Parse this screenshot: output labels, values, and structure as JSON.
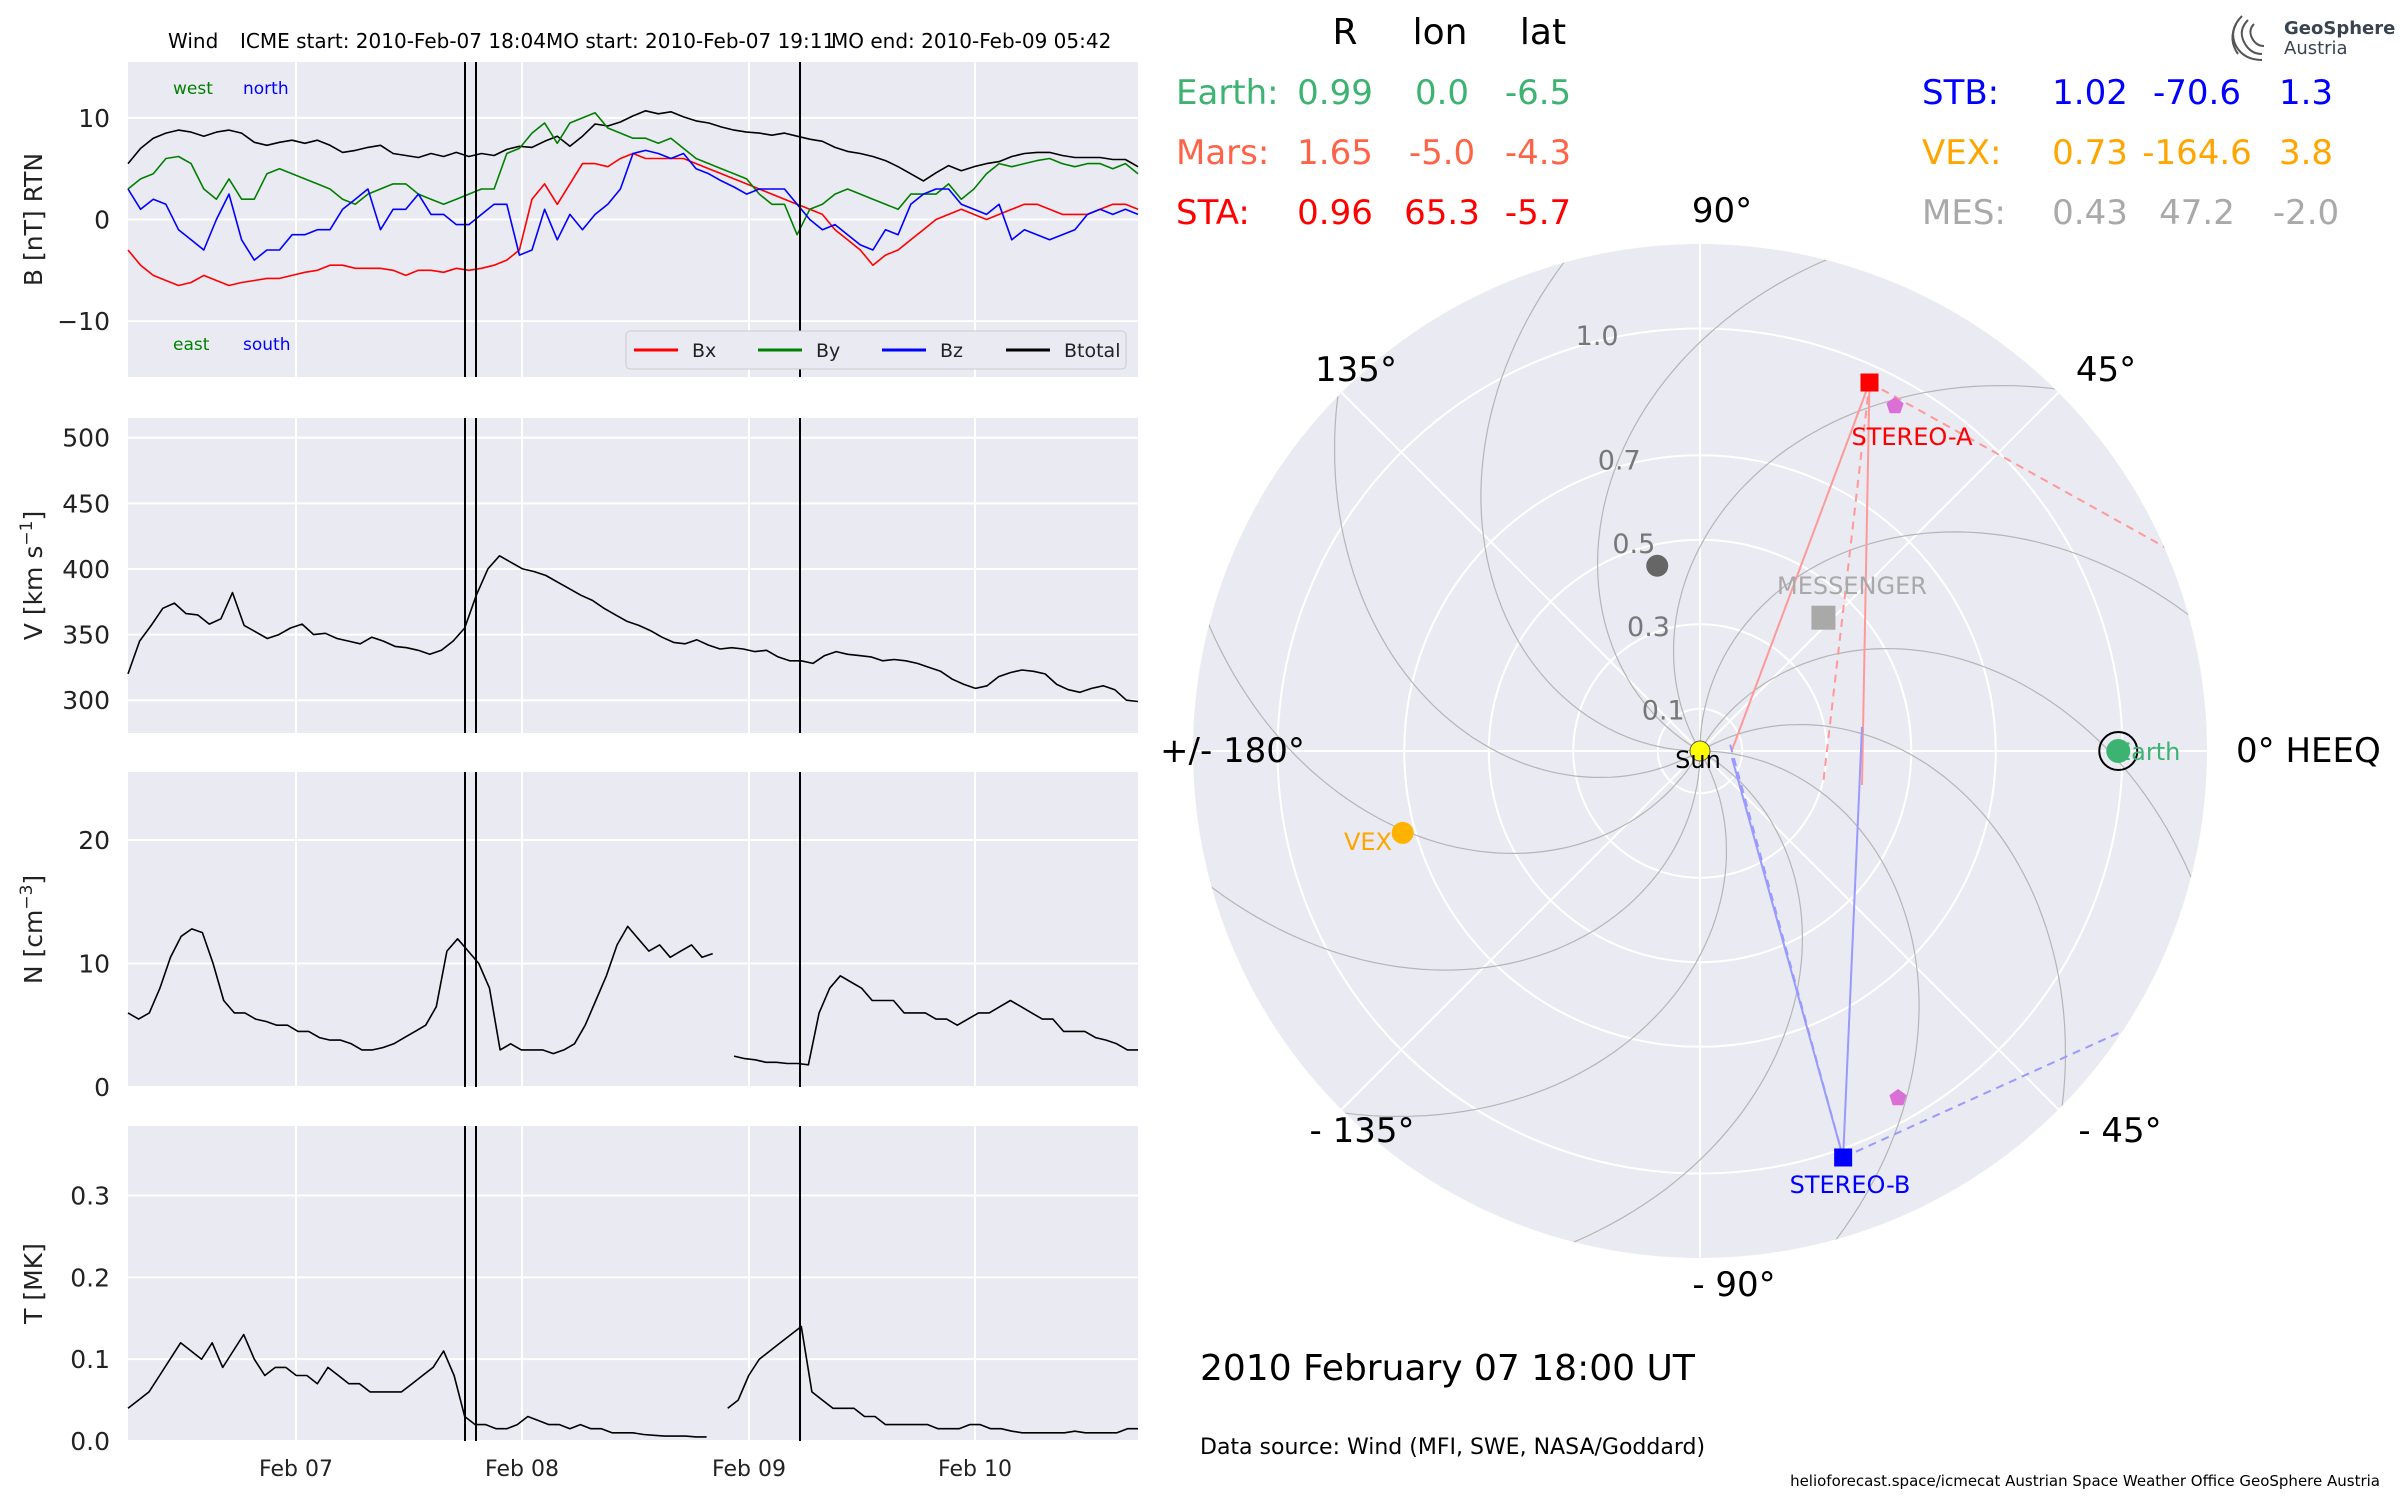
{
  "header": {
    "spacecraft": "Wind",
    "icme_start": "ICME start: 2010-Feb-07 18:04",
    "mo_start": "MO start: 2010-Feb-07 19:11",
    "mo_end": "MO end: 2010-Feb-09 05:42"
  },
  "logo": {
    "line1": "GeoSphere",
    "line2": "Austria"
  },
  "chart_data": [
    {
      "type": "line",
      "panel": "magnetic_field",
      "ylabel": "B [nT] RTN",
      "ylim": [
        -15.5,
        15.5
      ],
      "yticks": [
        "10",
        "0",
        "−10"
      ],
      "ytick_values": [
        10,
        0,
        -10
      ],
      "labels_top": [
        "west",
        "north"
      ],
      "labels_bottom": [
        "east",
        "south"
      ],
      "legend": [
        "Bx",
        "By",
        "Bz",
        "Btotal"
      ],
      "legend_position": "lower right",
      "series": [
        {
          "name": "Btotal",
          "color": "#000000",
          "values": [
            5.5,
            7,
            8,
            8.5,
            8.8,
            8.6,
            8.2,
            8.6,
            8.8,
            8.5,
            7.6,
            7.3,
            7.6,
            7.8,
            7.5,
            7.8,
            7.3,
            6.6,
            6.8,
            7.1,
            7.3,
            6.5,
            6.3,
            6.1,
            6.5,
            6.2,
            6.6,
            6.2,
            6.5,
            6.3,
            6.9,
            7.2,
            7.1,
            7.7,
            8.2,
            7.2,
            8.2,
            9.4,
            9.2,
            9.6,
            10.2,
            10.7,
            10.4,
            10.6,
            10.1,
            9.7,
            9.5,
            9.1,
            8.8,
            8.6,
            8.5,
            8.3,
            8.5,
            8.2,
            7.9,
            7.7,
            7.1,
            6.7,
            6.5,
            6.2,
            5.8,
            5.2,
            4.5,
            3.8,
            4.6,
            5.3,
            4.8,
            5.2,
            5.5,
            5.7,
            6.2,
            6.5,
            6.6,
            6.6,
            6.3,
            6.1,
            6.1,
            6.1,
            5.9,
            5.9,
            5.2
          ]
        },
        {
          "name": "Bx",
          "color": "#ff0000",
          "values": [
            -3,
            -4.5,
            -5.5,
            -6,
            -6.5,
            -6.2,
            -5.5,
            -6,
            -6.5,
            -6.2,
            -6,
            -5.8,
            -5.8,
            -5.5,
            -5.2,
            -5,
            -4.5,
            -4.5,
            -4.8,
            -4.8,
            -4.8,
            -5,
            -5.5,
            -5,
            -5,
            -5.2,
            -4.8,
            -5,
            -4.8,
            -4.5,
            -4,
            -3,
            2,
            3.5,
            1.5,
            3.5,
            5.5,
            5.5,
            5.2,
            6,
            6.5,
            6,
            6,
            6,
            6,
            5.5,
            5,
            4.5,
            4,
            3.5,
            3,
            2.5,
            2,
            1.5,
            1,
            0.5,
            -1,
            -2,
            -3,
            -4.5,
            -3.5,
            -3,
            -2,
            -1,
            0,
            0.5,
            1,
            0.5,
            0,
            0.5,
            1,
            1.5,
            1.5,
            1,
            0.5,
            0.5,
            0.5,
            1,
            1.5,
            1.5,
            1
          ]
        },
        {
          "name": "By",
          "color": "#008000",
          "values": [
            3,
            4,
            4.5,
            6,
            6.2,
            5.5,
            3,
            2,
            4,
            2,
            2,
            4.5,
            5,
            4.5,
            4,
            3.5,
            3,
            2,
            1.5,
            2.5,
            3,
            3.5,
            3.5,
            2.5,
            2,
            1.5,
            2,
            2.5,
            3,
            3,
            6.5,
            7,
            8.5,
            9.5,
            7.5,
            9.5,
            10,
            10.5,
            9,
            8.5,
            8,
            8,
            7.5,
            8,
            7,
            6,
            5.5,
            5,
            4.5,
            4,
            2.5,
            1.5,
            1.5,
            -1.5,
            1,
            1.5,
            2.5,
            3,
            2.5,
            2,
            1.5,
            1,
            2.5,
            2.5,
            2.5,
            3.5,
            2,
            3,
            4.5,
            5.5,
            5.2,
            5.5,
            5.8,
            6,
            5.5,
            5.2,
            5.5,
            5.5,
            5,
            5.5,
            4.5
          ]
        },
        {
          "name": "Bz",
          "color": "#0000ff",
          "values": [
            3,
            1,
            2,
            1.5,
            -1,
            -2,
            -3,
            0,
            2.5,
            -2,
            -4,
            -3,
            -3,
            -1.5,
            -1.5,
            -1,
            -1,
            1,
            2,
            3,
            -1,
            1,
            1,
            2.5,
            0.5,
            0.5,
            -0.5,
            -0.5,
            0.5,
            1.5,
            1.5,
            -3.5,
            -3,
            1,
            -2,
            0.5,
            -1,
            0.5,
            1.5,
            3,
            6.5,
            6.8,
            6.5,
            6,
            6.5,
            5,
            4.5,
            3.8,
            3.2,
            2.5,
            3,
            3,
            3,
            1.5,
            0,
            -1,
            -0.5,
            -1.5,
            -2.5,
            -3,
            -1,
            -1.5,
            1.5,
            2.5,
            3,
            3,
            1.5,
            1,
            0.5,
            1.5,
            -2,
            -1,
            -1.5,
            -2,
            -1.5,
            -1,
            0.5,
            1,
            0.5,
            1,
            0.5
          ]
        }
      ]
    },
    {
      "type": "line",
      "panel": "speed",
      "ylabel": "V [km s",
      "ylabel_sup": "−1",
      "ylabel_end": "]",
      "ylim": [
        275,
        515
      ],
      "yticks": [
        "500",
        "450",
        "400",
        "350",
        "300"
      ],
      "ytick_values": [
        500,
        450,
        400,
        350,
        300
      ],
      "series": [
        {
          "name": "V",
          "color": "#000000",
          "values": [
            320,
            345,
            357,
            370,
            374,
            366,
            365,
            358,
            362,
            382,
            357,
            352,
            347,
            350,
            355,
            358,
            350,
            351,
            347,
            345,
            343,
            348,
            345,
            341,
            340,
            338,
            335,
            338,
            345,
            355,
            380,
            400,
            410,
            405,
            400,
            398,
            395,
            390,
            385,
            380,
            376,
            370,
            365,
            360,
            357,
            353,
            348,
            344,
            343,
            346,
            342,
            339,
            340,
            339,
            337,
            338,
            333,
            330,
            330,
            328,
            334,
            337,
            335,
            334,
            333,
            330,
            331,
            330,
            328,
            325,
            322,
            316,
            312,
            309,
            311,
            318,
            321,
            323,
            322,
            320,
            312,
            308,
            306,
            309,
            311,
            308,
            300,
            299
          ]
        }
      ]
    },
    {
      "type": "line",
      "panel": "density",
      "ylabel": "N [cm",
      "ylabel_sup": "−3",
      "ylabel_end": "]",
      "ylim": [
        0,
        25.5
      ],
      "yticks": [
        "20",
        "10",
        "0"
      ],
      "ytick_values": [
        20,
        10,
        0
      ],
      "series": [
        {
          "name": "N",
          "color": "#000000",
          "values": [
            6,
            5.5,
            6,
            8,
            10.5,
            12.2,
            12.8,
            12.5,
            10,
            7,
            6,
            6,
            5.5,
            5.3,
            5,
            5,
            4.5,
            4.5,
            4,
            3.8,
            3.8,
            3.5,
            3,
            3,
            3.2,
            3.5,
            4,
            4.5,
            5,
            6.5,
            11,
            12,
            11,
            10,
            8,
            3,
            3.5,
            3,
            3,
            3,
            2.7,
            3,
            3.5,
            5,
            7,
            9,
            11.5,
            13,
            12,
            11,
            11.5,
            10.5,
            11,
            11.5,
            10.5,
            10.8,
            null,
            2.5,
            2.3,
            2.2,
            2,
            2,
            1.9,
            1.9,
            1.8,
            6,
            8,
            9,
            8.5,
            8,
            7,
            7,
            7,
            6,
            6,
            6,
            5.5,
            5.5,
            5,
            5.5,
            6,
            6,
            6.5,
            7,
            6.5,
            6,
            5.5,
            5.5,
            4.5,
            4.5,
            4.5,
            4,
            3.8,
            3.5,
            3,
            3
          ]
        }
      ]
    },
    {
      "type": "line",
      "panel": "temperature",
      "ylabel": "T [MK]",
      "ylim": [
        0,
        0.385
      ],
      "yticks": [
        "0.3",
        "0.2",
        "0.1",
        "0.0"
      ],
      "ytick_values": [
        0.3,
        0.2,
        0.1,
        0
      ],
      "x_tick_labels": [
        "Feb 07",
        "Feb 08",
        "Feb 09",
        "Feb 10"
      ],
      "series": [
        {
          "name": "T",
          "color": "#000000",
          "values": [
            0.04,
            0.05,
            0.06,
            0.08,
            0.1,
            0.12,
            0.11,
            0.1,
            0.12,
            0.09,
            0.11,
            0.13,
            0.1,
            0.08,
            0.09,
            0.09,
            0.08,
            0.08,
            0.07,
            0.09,
            0.08,
            0.07,
            0.07,
            0.06,
            0.06,
            0.06,
            0.06,
            0.07,
            0.08,
            0.09,
            0.11,
            0.08,
            0.03,
            0.02,
            0.02,
            0.015,
            0.015,
            0.02,
            0.03,
            0.025,
            0.02,
            0.02,
            0.015,
            0.02,
            0.015,
            0.015,
            0.01,
            0.01,
            0.01,
            0.008,
            0.007,
            0.006,
            0.006,
            0.006,
            0.005,
            0.005,
            null,
            0.04,
            0.05,
            0.08,
            0.1,
            0.11,
            0.12,
            0.13,
            0.14,
            0.06,
            0.05,
            0.04,
            0.04,
            0.04,
            0.03,
            0.03,
            0.02,
            0.02,
            0.02,
            0.02,
            0.02,
            0.015,
            0.015,
            0.015,
            0.02,
            0.02,
            0.015,
            0.015,
            0.012,
            0.01,
            0.01,
            0.01,
            0.01,
            0.01,
            0.012,
            0.01,
            0.01,
            0.01,
            0.01,
            0.015,
            0.015
          ]
        }
      ]
    },
    {
      "type": "scatter",
      "panel": "polar_position_map",
      "coordinate_system": "0° HEEQ",
      "angle_labels": {
        "a90": "90°",
        "a45": "45°",
        "a135": "135°",
        "a0": "0° HEEQ",
        "a180": "+/- 180°",
        "am45": "- 45°",
        "am135": "- 135°",
        "am90": "- 90°"
      },
      "radial_labels": [
        {
          "r": 0.1,
          "label": "0.1"
        },
        {
          "r": 0.3,
          "label": "0.3"
        },
        {
          "r": 0.5,
          "label": "0.5"
        },
        {
          "r": 0.7,
          "label": "0.7"
        },
        {
          "r": 1.0,
          "label": "1.0"
        }
      ],
      "bodies": [
        {
          "name": "Sun",
          "r": 0.0,
          "lon": 0,
          "color": "#ffff00",
          "marker": "circle",
          "label": "Sun"
        },
        {
          "name": "Earth",
          "r": 0.99,
          "lon": 0.0,
          "color": "#3cb371",
          "marker": "circle",
          "label": "Earth"
        },
        {
          "name": "STEREO-A",
          "r": 0.96,
          "lon": 65.3,
          "color": "#ff0000",
          "marker": "square",
          "label": "STEREO-A"
        },
        {
          "name": "STEREO-B",
          "r": 1.02,
          "lon": -70.6,
          "color": "#0000ff",
          "marker": "square",
          "label": "STEREO-B"
        },
        {
          "name": "MESSENGER",
          "r": 0.43,
          "lon": 47.2,
          "color": "#a9a9a9",
          "marker": "square",
          "label": "MESSENGER"
        },
        {
          "name": "VEX",
          "r": 0.73,
          "lon": -164.6,
          "color": "#ffb200",
          "marker": "circle",
          "label": "VEX"
        },
        {
          "name": "Mercury",
          "r": 0.45,
          "lon": 103,
          "color": "#666666",
          "marker": "circle",
          "label": ""
        }
      ]
    }
  ],
  "position_table": {
    "headers": [
      "R",
      "lon",
      "lat"
    ],
    "left_rows": [
      {
        "name": "Earth:",
        "r": "0.99",
        "lon": "0.0",
        "lat": "-6.5",
        "color": "#3cb371"
      },
      {
        "name": "Mars:",
        "r": "1.65",
        "lon": "-5.0",
        "lat": "-4.3",
        "color": "#ff6347"
      },
      {
        "name": "STA:",
        "r": "0.96",
        "lon": "65.3",
        "lat": "-5.7",
        "color": "#ff0000"
      }
    ],
    "right_rows": [
      {
        "name": "STB:",
        "r": "1.02",
        "lon": "-70.6",
        "lat": "1.3",
        "color": "#0000ff"
      },
      {
        "name": "VEX:",
        "r": "0.73",
        "lon": "-164.6",
        "lat": "3.8",
        "color": "#ffa500"
      },
      {
        "name": "MES:",
        "r": "0.43",
        "lon": "47.2",
        "lat": "-2.0",
        "color": "#a9a9a9"
      }
    ]
  },
  "footer": {
    "datetime": "2010 February 07  18:00 UT",
    "data_source": "Data source: Wind (MFI, SWE, NASA/Goddard)",
    "credits": "helioforecast.space/icmecat   Austrian Space Weather Office   GeoSphere Austria"
  },
  "colors": {
    "panel_bg": "#eaeaf2",
    "grid": "#ffffff",
    "line": "#000000"
  }
}
